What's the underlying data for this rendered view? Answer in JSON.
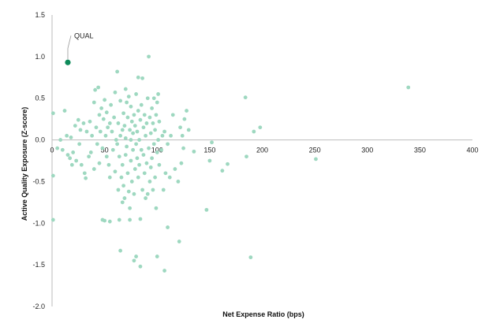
{
  "chart_data": {
    "type": "scatter",
    "title": "",
    "xlabel": "Net Expense Ratio (bps)",
    "ylabel": "Active Quality Exposure  (Z-score)",
    "xlim": [
      0,
      400
    ],
    "ylim": [
      -2.0,
      1.5
    ],
    "x_ticks": [
      0,
      50,
      100,
      150,
      200,
      250,
      300,
      350,
      400
    ],
    "y_ticks": [
      1.5,
      1.0,
      0.5,
      0.0,
      -0.5,
      -1.0,
      -1.5,
      -2.0
    ],
    "y_tick_labels": [
      "1.5",
      "1.0",
      "0.5",
      "0.0",
      "-0.5",
      "-1.0",
      "-1.5",
      "-2.0"
    ],
    "grid": false,
    "colors": {
      "points": "#9ed8c0",
      "highlight": "#0e8a5a",
      "axis": "#bbbbbb"
    },
    "highlight": {
      "label": "QUAL",
      "x": 15,
      "y": 0.93
    },
    "points": [
      [
        1,
        0.32
      ],
      [
        1,
        -0.43
      ],
      [
        1,
        -0.96
      ],
      [
        5,
        -0.1
      ],
      [
        8,
        0.0
      ],
      [
        10,
        -0.12
      ],
      [
        12,
        0.35
      ],
      [
        14,
        0.05
      ],
      [
        15,
        -0.18
      ],
      [
        17,
        -0.22
      ],
      [
        18,
        0.03
      ],
      [
        19,
        -0.3
      ],
      [
        20,
        -0.15
      ],
      [
        22,
        0.17
      ],
      [
        23,
        -0.25
      ],
      [
        25,
        0.24
      ],
      [
        26,
        -0.05
      ],
      [
        27,
        0.12
      ],
      [
        28,
        -0.3
      ],
      [
        30,
        0.2
      ],
      [
        31,
        -0.4
      ],
      [
        32,
        -0.46
      ],
      [
        33,
        0.1
      ],
      [
        35,
        -0.2
      ],
      [
        36,
        0.22
      ],
      [
        37,
        -0.15
      ],
      [
        38,
        0.05
      ],
      [
        40,
        0.45
      ],
      [
        40,
        -0.35
      ],
      [
        41,
        0.6
      ],
      [
        42,
        0.15
      ],
      [
        43,
        -0.05
      ],
      [
        44,
        0.63
      ],
      [
        45,
        0.3
      ],
      [
        45,
        -0.28
      ],
      [
        46,
        0.1
      ],
      [
        47,
        0.38
      ],
      [
        48,
        -0.1
      ],
      [
        48,
        -0.96
      ],
      [
        49,
        0.25
      ],
      [
        50,
        0.48
      ],
      [
        50,
        -0.97
      ],
      [
        51,
        0.05
      ],
      [
        52,
        0.33
      ],
      [
        52,
        -0.2
      ],
      [
        53,
        0.15
      ],
      [
        54,
        -0.3
      ],
      [
        55,
        0.2
      ],
      [
        55,
        -0.45
      ],
      [
        55,
        -0.98
      ],
      [
        56,
        0.42
      ],
      [
        57,
        0.1
      ],
      [
        58,
        -0.12
      ],
      [
        59,
        0.27
      ],
      [
        60,
        0.57
      ],
      [
        60,
        -0.38
      ],
      [
        61,
        0.0
      ],
      [
        62,
        -0.05
      ],
      [
        62,
        0.82
      ],
      [
        63,
        0.2
      ],
      [
        63,
        -0.6
      ],
      [
        64,
        -0.2
      ],
      [
        64,
        -0.96
      ],
      [
        65,
        0.47
      ],
      [
        65,
        0.05
      ],
      [
        65,
        -1.33
      ],
      [
        66,
        -0.45
      ],
      [
        67,
        -0.75
      ],
      [
        67,
        0.12
      ],
      [
        67,
        -0.3
      ],
      [
        68,
        0.32
      ],
      [
        68,
        -0.55
      ],
      [
        69,
        0.17
      ],
      [
        69,
        -0.7
      ],
      [
        70,
        0.61
      ],
      [
        70,
        0.02
      ],
      [
        70,
        -0.18
      ],
      [
        71,
        0.45
      ],
      [
        71,
        -0.08
      ],
      [
        72,
        0.27
      ],
      [
        72,
        -0.4
      ],
      [
        73,
        0.52
      ],
      [
        73,
        -0.62
      ],
      [
        74,
        0.12
      ],
      [
        74,
        -0.82
      ],
      [
        74,
        -0.96
      ],
      [
        75,
        0.4
      ],
      [
        75,
        -0.25
      ],
      [
        75,
        0.0
      ],
      [
        76,
        0.22
      ],
      [
        76,
        -0.5
      ],
      [
        77,
        -0.12
      ],
      [
        77,
        0.08
      ],
      [
        78,
        0.3
      ],
      [
        78,
        -0.65
      ],
      [
        78,
        -1.45
      ],
      [
        79,
        0.17
      ],
      [
        79,
        -0.35
      ],
      [
        80,
        0.55
      ],
      [
        80,
        -0.05
      ],
      [
        80,
        -1.4
      ],
      [
        81,
        0.1
      ],
      [
        81,
        -0.22
      ],
      [
        82,
        0.75
      ],
      [
        82,
        -0.45
      ],
      [
        82,
        0.35
      ],
      [
        83,
        0.0
      ],
      [
        83,
        -0.3
      ],
      [
        84,
        0.24
      ],
      [
        84,
        -0.95
      ],
      [
        84,
        -1.52
      ],
      [
        85,
        -0.12
      ],
      [
        85,
        0.42
      ],
      [
        86,
        0.74
      ],
      [
        86,
        -0.6
      ],
      [
        87,
        0.15
      ],
      [
        87,
        -0.18
      ],
      [
        88,
        0.3
      ],
      [
        88,
        -0.4
      ],
      [
        89,
        0.05
      ],
      [
        89,
        -0.7
      ],
      [
        90,
        0.2
      ],
      [
        90,
        -0.28
      ],
      [
        91,
        0.5
      ],
      [
        91,
        -0.65
      ],
      [
        92,
        1.0
      ],
      [
        92,
        -0.1
      ],
      [
        93,
        0.27
      ],
      [
        93,
        -0.5
      ],
      [
        94,
        0.08
      ],
      [
        94,
        -0.33
      ],
      [
        95,
        0.38
      ],
      [
        95,
        -0.22
      ],
      [
        96,
        0.2
      ],
      [
        96,
        -0.6
      ],
      [
        97,
        -0.05
      ],
      [
        97,
        0.5
      ],
      [
        98,
        0.12
      ],
      [
        98,
        -0.45
      ],
      [
        99,
        0.3
      ],
      [
        99,
        -0.82
      ],
      [
        100,
        0.45
      ],
      [
        100,
        -0.15
      ],
      [
        100,
        -1.4
      ],
      [
        101,
        0.55
      ],
      [
        101,
        0.0
      ],
      [
        102,
        0.22
      ],
      [
        102,
        -0.3
      ],
      [
        104,
        -0.12
      ],
      [
        105,
        0.05
      ],
      [
        106,
        -0.6
      ],
      [
        107,
        0.1
      ],
      [
        107,
        -1.57
      ],
      [
        108,
        -0.4
      ],
      [
        110,
        -0.05
      ],
      [
        110,
        -1.05
      ],
      [
        112,
        -0.45
      ],
      [
        113,
        0.05
      ],
      [
        115,
        0.3
      ],
      [
        117,
        -0.35
      ],
      [
        120,
        -0.5
      ],
      [
        121,
        -1.22
      ],
      [
        122,
        0.15
      ],
      [
        123,
        -0.28
      ],
      [
        124,
        0.05
      ],
      [
        125,
        -0.1
      ],
      [
        126,
        0.25
      ],
      [
        128,
        0.35
      ],
      [
        130,
        0.12
      ],
      [
        135,
        -0.14
      ],
      [
        147,
        -0.84
      ],
      [
        150,
        -0.25
      ],
      [
        152,
        -0.03
      ],
      [
        162,
        -0.37
      ],
      [
        167,
        -0.29
      ],
      [
        184,
        0.51
      ],
      [
        185,
        -0.2
      ],
      [
        189,
        -1.41
      ],
      [
        192,
        0.1
      ],
      [
        198,
        0.15
      ],
      [
        251,
        -0.23
      ],
      [
        339,
        0.63
      ]
    ]
  }
}
